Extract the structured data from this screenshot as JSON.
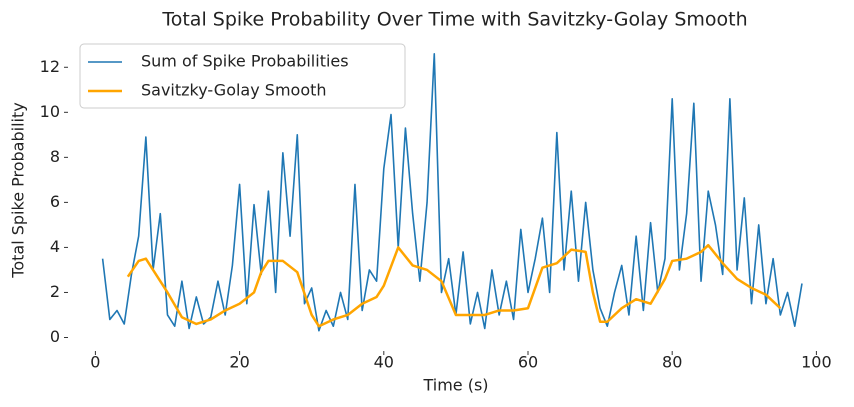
{
  "chart_data": {
    "type": "line",
    "title": "Total Spike Probability Over Time with Savitzky-Golay Smooth",
    "xlabel": "Time (s)",
    "ylabel": "Total Spike Probability",
    "xlim": [
      -3.8,
      100.5
    ],
    "ylim": [
      -0.6,
      13.3
    ],
    "xticks": [
      0,
      20,
      40,
      60,
      80,
      100
    ],
    "yticks": [
      0,
      2,
      4,
      6,
      8,
      10,
      12
    ],
    "grid": false,
    "legend": "upper left",
    "series": [
      {
        "name": "Sum of Spike Probabilities",
        "color": "#1f77b4",
        "width": 1.6,
        "x": [
          1,
          2,
          3,
          4,
          5,
          6,
          7,
          8,
          9,
          10,
          11,
          12,
          13,
          14,
          15,
          16,
          17,
          18,
          19,
          20,
          21,
          22,
          23,
          24,
          25,
          26,
          27,
          28,
          29,
          30,
          31,
          32,
          33,
          34,
          35,
          36,
          37,
          38,
          39,
          40,
          41,
          42,
          43,
          44,
          45,
          46,
          47,
          48,
          49,
          50,
          51,
          52,
          53,
          54,
          55,
          56,
          57,
          58,
          59,
          60,
          61,
          62,
          63,
          64,
          65,
          66,
          67,
          68,
          69,
          70,
          71,
          72,
          73,
          74,
          75,
          76,
          77,
          78,
          79,
          80,
          81,
          82,
          83,
          84,
          85,
          86,
          87,
          88,
          89,
          90,
          91,
          92,
          93,
          94,
          95,
          96,
          97,
          98
        ],
        "values": [
          3.5,
          0.8,
          1.2,
          0.6,
          2.8,
          4.5,
          8.9,
          3.0,
          5.5,
          1.0,
          0.5,
          2.5,
          0.4,
          1.8,
          0.6,
          0.9,
          2.5,
          1.0,
          3.2,
          6.8,
          1.5,
          5.9,
          2.8,
          6.5,
          2.0,
          8.2,
          4.5,
          9.0,
          1.5,
          2.2,
          0.3,
          1.2,
          0.5,
          2.0,
          0.8,
          6.8,
          1.2,
          3.0,
          2.5,
          7.5,
          9.9,
          4.0,
          9.3,
          5.5,
          2.5,
          6.0,
          12.6,
          2.0,
          3.5,
          1.0,
          3.8,
          0.6,
          2.0,
          0.4,
          3.0,
          1.0,
          2.5,
          0.8,
          4.8,
          2.0,
          3.5,
          5.3,
          2.0,
          9.1,
          3.0,
          6.5,
          2.5,
          6.0,
          3.0,
          1.3,
          0.5,
          2.0,
          3.2,
          1.0,
          4.5,
          1.2,
          5.1,
          2.0,
          3.5,
          10.6,
          3.0,
          5.5,
          10.4,
          2.5,
          6.5,
          5.0,
          2.8,
          10.6,
          3.0,
          6.2,
          1.5,
          5.0,
          1.5,
          3.5,
          1.0,
          2.0,
          0.5,
          2.4
        ]
      },
      {
        "name": "Savitzky-Golay Smooth",
        "color": "#ffa500",
        "width": 2.5,
        "x": [
          4.5,
          6,
          7,
          8,
          10,
          12,
          14,
          16,
          18,
          20,
          22,
          23,
          24,
          26,
          28,
          30,
          31,
          33,
          35,
          37,
          39,
          40,
          42,
          44,
          46,
          48,
          50,
          52,
          54,
          56,
          58,
          60,
          62,
          64,
          66,
          68,
          69,
          70,
          71,
          73,
          75,
          77,
          79,
          80,
          82,
          84,
          85,
          87,
          89,
          91,
          93,
          95
        ],
        "values": [
          2.7,
          3.4,
          3.5,
          3.0,
          2.0,
          0.9,
          0.6,
          0.8,
          1.2,
          1.5,
          2.0,
          2.9,
          3.4,
          3.4,
          2.9,
          1.0,
          0.5,
          0.8,
          1.0,
          1.5,
          1.8,
          2.3,
          4.0,
          3.2,
          3.0,
          2.5,
          1.0,
          1.0,
          1.0,
          1.2,
          1.2,
          1.3,
          3.1,
          3.3,
          3.9,
          3.8,
          2.0,
          0.7,
          0.7,
          1.3,
          1.7,
          1.5,
          2.6,
          3.4,
          3.5,
          3.8,
          4.1,
          3.3,
          2.6,
          2.2,
          1.9,
          1.3
        ]
      }
    ]
  }
}
